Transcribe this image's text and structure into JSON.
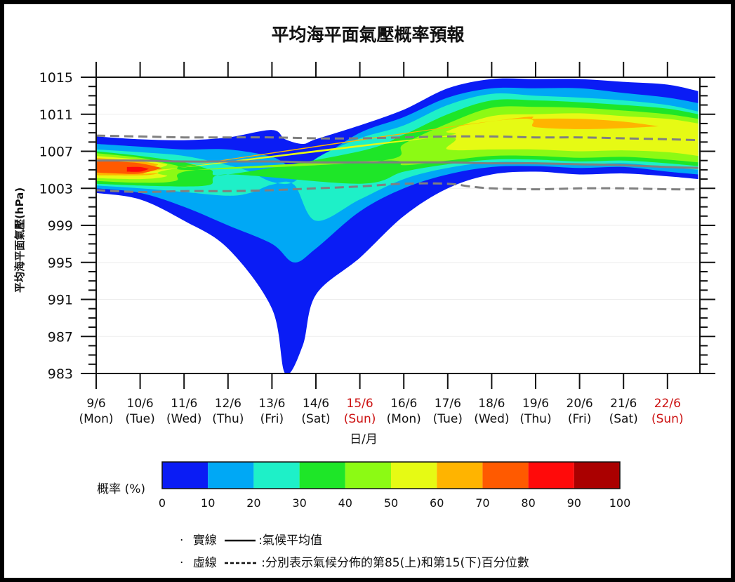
{
  "chart_data": {
    "type": "heatmap",
    "title": "平均海平面氣壓概率預報",
    "xlabel": "日/月",
    "ylabel": "平均海平面氣壓(hPa)",
    "ylim": [
      983,
      1015
    ],
    "y_ticks": [
      "1015",
      "1011",
      "1007",
      "1003",
      "999",
      "995",
      "991",
      "987",
      "983"
    ],
    "x_ticks": [
      {
        "date": "9/6",
        "day": "(Mon)",
        "weekend": false
      },
      {
        "date": "10/6",
        "day": "(Tue)",
        "weekend": false
      },
      {
        "date": "11/6",
        "day": "(Wed)",
        "weekend": false
      },
      {
        "date": "12/6",
        "day": "(Thu)",
        "weekend": false
      },
      {
        "date": "13/6",
        "day": "(Fri)",
        "weekend": false
      },
      {
        "date": "14/6",
        "day": "(Sat)",
        "weekend": false
      },
      {
        "date": "15/6",
        "day": "(Sun)",
        "weekend": true
      },
      {
        "date": "16/6",
        "day": "(Mon)",
        "weekend": false
      },
      {
        "date": "17/6",
        "day": "(Tue)",
        "weekend": false
      },
      {
        "date": "18/6",
        "day": "(Wed)",
        "weekend": false
      },
      {
        "date": "19/6",
        "day": "(Thu)",
        "weekend": false
      },
      {
        "date": "20/6",
        "day": "(Fri)",
        "weekend": false
      },
      {
        "date": "21/6",
        "day": "(Sat)",
        "weekend": false
      },
      {
        "date": "22/6",
        "day": "(Sun)",
        "weekend": true
      }
    ],
    "colorbar": {
      "label": "概率 (%)",
      "ticks": [
        "0",
        "10",
        "20",
        "30",
        "40",
        "50",
        "60",
        "70",
        "80",
        "90",
        "100"
      ],
      "colors": [
        "#0a1cf5",
        "#00a8f5",
        "#1ef0c8",
        "#1ee628",
        "#8cfa14",
        "#e6fa14",
        "#ffb400",
        "#ff5a00",
        "#ff0a0a",
        "#aa0000"
      ]
    },
    "climate_mean": {
      "x": [
        9,
        10,
        11,
        12,
        13,
        14,
        15,
        16,
        17,
        18,
        19,
        20,
        21,
        22,
        22.7
      ],
      "y": [
        1006.0,
        1006.0,
        1005.9,
        1005.9,
        1005.9,
        1005.8,
        1005.8,
        1005.8,
        1005.8,
        1005.7,
        1005.7,
        1005.6,
        1005.5,
        1005.3,
        1005.2
      ]
    },
    "percentile_85": {
      "x": [
        9,
        10,
        11,
        12,
        13,
        14,
        15,
        16,
        17,
        18,
        19,
        20,
        21,
        22,
        22.7
      ],
      "y": [
        1008.7,
        1008.6,
        1008.5,
        1008.5,
        1008.5,
        1008.4,
        1008.4,
        1008.5,
        1008.6,
        1008.6,
        1008.5,
        1008.5,
        1008.4,
        1008.3,
        1008.2
      ]
    },
    "percentile_15": {
      "x": [
        9,
        10,
        11,
        12,
        13,
        14,
        15,
        16,
        17,
        17.5,
        18,
        19,
        20,
        21,
        22,
        22.7
      ],
      "y": [
        1002.8,
        1002.6,
        1002.7,
        1002.7,
        1002.8,
        1003.0,
        1003.2,
        1003.5,
        1003.5,
        1003.2,
        1003.0,
        1002.9,
        1003.0,
        1003.0,
        1002.9,
        1002.9
      ]
    },
    "probability_bands": [
      {
        "level": "≥0%",
        "x": [
          9,
          10,
          11,
          12,
          13,
          13.3,
          13.7,
          14,
          15,
          16,
          17,
          18,
          19,
          20,
          21,
          22,
          22.7
        ],
        "upper": [
          1008.6,
          1008.3,
          1008.2,
          1008.5,
          1009.3,
          1008.3,
          1007.8,
          1008.3,
          1009.8,
          1011.5,
          1013.8,
          1014.8,
          1014.8,
          1014.8,
          1014.5,
          1014.2,
          1013.5
        ],
        "lower": [
          1002.5,
          1001.8,
          999.5,
          996.5,
          990.0,
          983.0,
          986.0,
          991.5,
          995.5,
          1000.0,
          1003.0,
          1004.5,
          1004.8,
          1004.5,
          1004.6,
          1004.3,
          1004.0
        ]
      },
      {
        "level": "≥10%",
        "x": [
          9,
          10,
          11,
          12,
          13,
          13.5,
          14,
          15,
          16,
          17,
          18,
          19,
          20,
          21,
          22,
          22.7
        ],
        "upper": [
          1007.8,
          1007.5,
          1007.2,
          1007.2,
          1006.4,
          1005.2,
          1006.0,
          1009.0,
          1010.7,
          1012.8,
          1013.8,
          1013.8,
          1013.8,
          1013.3,
          1012.8,
          1012.2
        ],
        "lower": [
          1003.0,
          1002.5,
          1001.0,
          999.0,
          997.0,
          995.0,
          996.5,
          1000.5,
          1003.0,
          1004.5,
          1005.3,
          1005.4,
          1005.2,
          1005.3,
          1004.8,
          1004.5
        ]
      },
      {
        "level": "≥20%",
        "x": [
          9,
          10,
          11,
          12,
          12.5,
          13,
          13.5,
          14,
          15,
          16,
          17,
          18,
          19,
          20,
          21,
          22,
          22.7
        ],
        "upper": [
          1007.2,
          1006.9,
          1006.5,
          1005.5,
          1004.8,
          1003.7,
          1003.7,
          1006.2,
          1008.4,
          1009.8,
          1012.0,
          1013.2,
          1013.0,
          1012.8,
          1012.5,
          1012.0,
          1011.3
        ],
        "lower": [
          1003.3,
          1003.0,
          1002.6,
          1002.2,
          1002.5,
          1003.4,
          1003.4,
          999.5,
          1001.8,
          1004.0,
          1005.2,
          1005.8,
          1005.8,
          1005.6,
          1005.7,
          1005.3,
          1005.0
        ]
      },
      {
        "level": "≥30%",
        "x": [
          9,
          10,
          11,
          11.6,
          12,
          15,
          16,
          17,
          18,
          19,
          20,
          21,
          22,
          22.7
        ],
        "upper": [
          1007.0,
          1006.5,
          1005.8,
          1005.0,
          1004.5,
          1007.0,
          1008.8,
          1011.0,
          1012.5,
          1012.5,
          1012.3,
          1012.0,
          1011.6,
          1011.0
        ],
        "lower": [
          1003.5,
          1003.3,
          1003.2,
          1003.4,
          1004.5,
          1003.5,
          1004.8,
          1005.6,
          1006.1,
          1006.1,
          1005.9,
          1006.0,
          1005.7,
          1005.4
        ]
      },
      {
        "level": "≥40%",
        "x": [
          9,
          10,
          10.8,
          11.3,
          15.5,
          16,
          17,
          18,
          19,
          20,
          21,
          22,
          22.7
        ],
        "upper": [
          1006.8,
          1006.3,
          1005.5,
          1005.0,
          1006.0,
          1007.8,
          1010.0,
          1011.7,
          1011.8,
          1011.7,
          1011.4,
          1011.0,
          1010.5
        ],
        "lower": [
          1003.8,
          1003.6,
          1003.8,
          1005.0,
          1006.0,
          1005.5,
          1006.0,
          1006.5,
          1006.5,
          1006.3,
          1006.4,
          1006.1,
          1005.8
        ]
      },
      {
        "level": "≥50%",
        "x": [
          9,
          10,
          10.6,
          10.9,
          16.7,
          17,
          18,
          19,
          20,
          21,
          22,
          22.7
        ],
        "upper": [
          1006.5,
          1006.1,
          1005.6,
          1005.2,
          1008.5,
          1009.2,
          1010.8,
          1011.0,
          1011.1,
          1010.8,
          1010.5,
          1010.0
        ],
        "lower": [
          1004.1,
          1004.0,
          1004.3,
          1005.2,
          1008.5,
          1007.2,
          1007.2,
          1007.2,
          1007.0,
          1007.1,
          1006.9,
          1006.5
        ]
      },
      {
        "level": "≥60%",
        "x": [
          9,
          10,
          10.4,
          10.7,
          18.1,
          19,
          20,
          21,
          21.8
        ],
        "upper": [
          1006.3,
          1005.9,
          1005.6,
          1005.2,
          1010.3,
          1010.5,
          1010.5,
          1010.2,
          1009.7
        ],
        "lower": [
          1004.4,
          1004.4,
          1004.6,
          1005.2,
          1010.3,
          1009.6,
          1009.4,
          1009.5,
          1009.7
        ]
      },
      {
        "level": "≥70%",
        "x": [
          9,
          9.5,
          10,
          10.5
        ],
        "upper": [
          1006.1,
          1005.9,
          1005.7,
          1005.2
        ],
        "lower": [
          1004.7,
          1004.6,
          1004.6,
          1005.2
        ]
      },
      {
        "level": "≥80%",
        "x": [
          9.7,
          10,
          10.2
        ],
        "upper": [
          1005.3,
          1005.3,
          1005.1
        ],
        "lower": [
          1004.8,
          1004.8,
          1005.1
        ]
      }
    ]
  },
  "legend_notes": {
    "solid_bullet": "·",
    "solid_label": "實線",
    "solid_desc": ":氣候平均值",
    "dashed_bullet": "·",
    "dashed_label": "虛線",
    "dashed_desc": ":分別表示氣候分佈的第85(上)和第15(下)百分位數"
  },
  "colors": {
    "axis": "#111111",
    "weekend_label": "#cc1111",
    "climate_lines": "#808080"
  }
}
